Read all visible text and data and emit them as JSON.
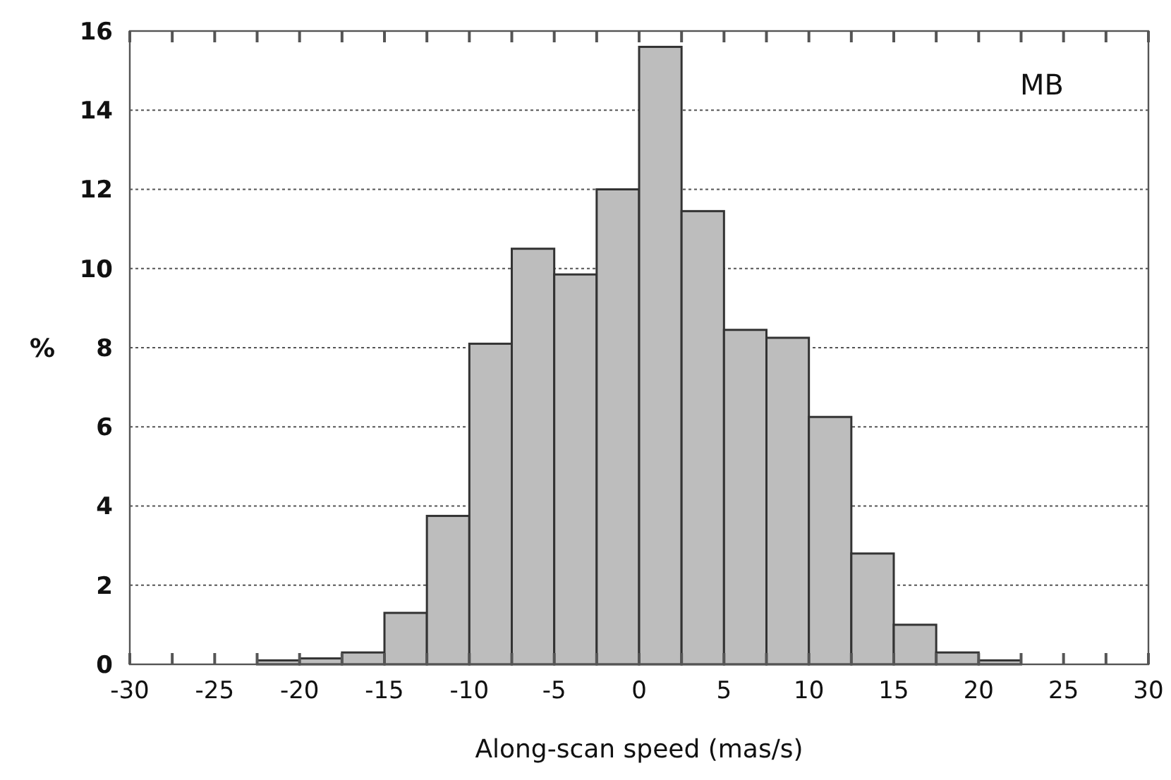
{
  "chart_data": {
    "type": "histogram",
    "xlabel": "Along-scan speed (mas/s)",
    "ylabel": "%",
    "bins": [
      -22.5,
      -20,
      -17.5,
      -15,
      -12.5,
      -10,
      -7.5,
      -5,
      -2.5,
      0,
      2.5,
      5,
      7.5,
      10,
      12.5,
      15,
      17.5,
      20,
      22.5
    ],
    "values": [
      0.1,
      0.15,
      0.3,
      1.3,
      3.75,
      8.1,
      10.5,
      9.85,
      12.0,
      15.6,
      11.45,
      8.45,
      8.25,
      6.25,
      2.8,
      1.0,
      0.3,
      0.1
    ],
    "color": "#bdbdbd",
    "xlim": [
      -30,
      30
    ],
    "xticks": [
      -30,
      -25,
      -20,
      -15,
      -10,
      -5,
      0,
      5,
      10,
      15,
      20,
      25,
      30
    ],
    "ylim": [
      0,
      16
    ],
    "yticks": [
      0,
      2,
      4,
      6,
      8,
      10,
      12,
      14,
      16
    ],
    "grid": "y",
    "annotations": [
      "MB"
    ]
  }
}
